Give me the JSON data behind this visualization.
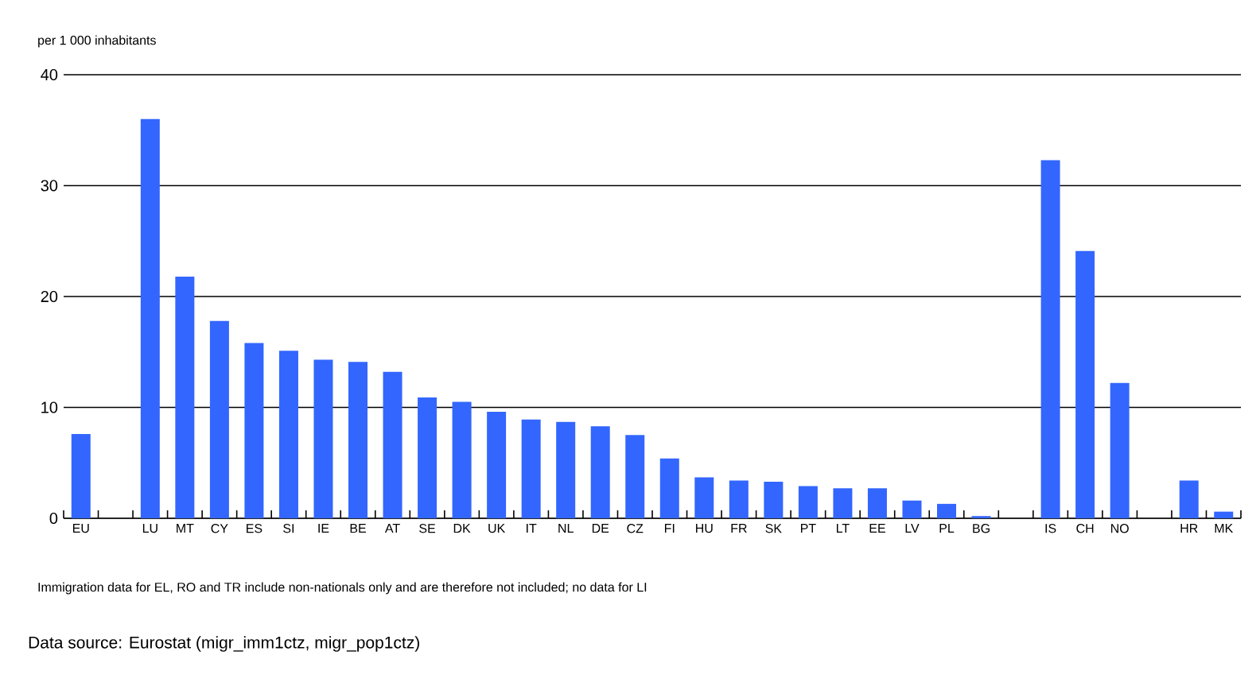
{
  "chart_data": {
    "type": "bar",
    "ylabel": "per 1 000 inhabitants",
    "categories": [
      "EU",
      null,
      "LU",
      "MT",
      "CY",
      "ES",
      "SI",
      "IE",
      "BE",
      "AT",
      "SE",
      "DK",
      "UK",
      "IT",
      "NL",
      "DE",
      "CZ",
      "FI",
      "HU",
      "FR",
      "SK",
      "PT",
      "LT",
      "EE",
      "LV",
      "PL",
      "BG",
      null,
      "IS",
      "CH",
      "NO",
      null,
      "HR",
      "MK"
    ],
    "values": [
      7.6,
      null,
      36.0,
      21.8,
      17.8,
      15.8,
      15.1,
      14.3,
      14.1,
      13.2,
      10.9,
      10.5,
      9.6,
      8.9,
      8.7,
      8.3,
      7.5,
      5.4,
      3.7,
      3.4,
      3.3,
      2.9,
      2.7,
      2.7,
      1.6,
      1.3,
      0.2,
      null,
      32.3,
      24.1,
      12.2,
      null,
      3.4,
      0.6
    ],
    "color": "#3366ff",
    "ylim": [
      0,
      40
    ],
    "yticks": [
      0,
      10,
      20,
      30,
      40
    ],
    "grid": "y",
    "annotations": [
      "Immigration data for EL, RO and TR include non-nationals only and are therefore not included; no data for LI",
      "Data source: Eurostat (migr_imm1ctz, migr_pop1ctz)"
    ]
  }
}
